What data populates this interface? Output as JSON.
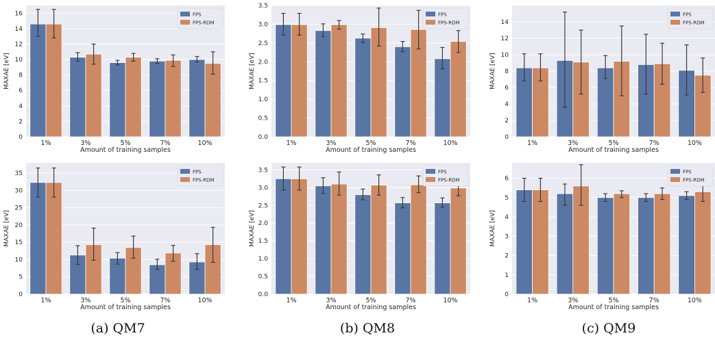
{
  "colors": {
    "fps": "#5875a4",
    "fps_rdm": "#cc8963",
    "plot_bg": "#eaeaf2",
    "grid": "#ffffff",
    "err": "#3a3a3a"
  },
  "captions": [
    "(a) QM7",
    "(b) QM8",
    "(c) QM9"
  ],
  "chart_data": [
    {
      "type": "bar",
      "panel": "QM7-top",
      "categories": [
        "1%",
        "3%",
        "5%",
        "7%",
        "10%"
      ],
      "series": [
        {
          "name": "FPS",
          "values": [
            14.6,
            10.3,
            9.6,
            9.8,
            10.0
          ],
          "err_low": [
            13.0,
            9.8,
            9.3,
            9.5,
            9.7
          ],
          "err_high": [
            16.5,
            10.9,
            9.9,
            10.1,
            10.4
          ]
        },
        {
          "name": "FPS-RDM",
          "values": [
            14.6,
            10.7,
            10.3,
            9.9,
            9.5
          ],
          "err_low": [
            12.8,
            9.4,
            9.8,
            9.1,
            8.1
          ],
          "err_high": [
            16.5,
            12.0,
            10.8,
            10.6,
            11.0
          ]
        }
      ],
      "xlabel": "Amount of training samples",
      "ylabel": "MAXAE [eV]",
      "ylim": [
        0,
        17
      ],
      "yticks": [
        0,
        2,
        4,
        6,
        8,
        10,
        12,
        14,
        16
      ],
      "yticklabels": [
        "0",
        "2",
        "4",
        "6",
        "8",
        "10",
        "12",
        "14",
        "16"
      ]
    },
    {
      "type": "bar",
      "panel": "QM8-top",
      "categories": [
        "1%",
        "3%",
        "5%",
        "7%",
        "10%"
      ],
      "series": [
        {
          "name": "FPS",
          "values": [
            2.99,
            2.83,
            2.63,
            2.4,
            2.08
          ],
          "err_low": [
            2.71,
            2.67,
            2.51,
            2.27,
            1.81
          ],
          "err_high": [
            3.29,
            3.01,
            2.74,
            2.54,
            2.38
          ]
        },
        {
          "name": "FPS-RDM",
          "values": [
            2.99,
            2.99,
            2.91,
            2.86,
            2.54
          ],
          "err_low": [
            2.71,
            2.87,
            2.42,
            2.34,
            2.25
          ],
          "err_high": [
            3.29,
            3.1,
            3.43,
            3.37,
            2.83
          ]
        }
      ],
      "xlabel": "Amount of training samples",
      "ylabel": "MAXAE [eV]",
      "ylim": [
        0,
        3.5
      ],
      "yticks": [
        0,
        0.5,
        1,
        1.5,
        2,
        2.5,
        3,
        3.5
      ],
      "yticklabels": [
        "0.0",
        "0.5",
        "1.0",
        "1.5",
        "2.0",
        "2.5",
        "3.0",
        "3.5"
      ]
    },
    {
      "type": "bar",
      "panel": "QM9-top",
      "categories": [
        "1%",
        "3%",
        "5%",
        "7%",
        "10%"
      ],
      "series": [
        {
          "name": "FPS",
          "values": [
            8.4,
            9.3,
            8.4,
            8.8,
            8.1
          ],
          "err_low": [
            6.8,
            3.6,
            7.1,
            5.2,
            5.1
          ],
          "err_high": [
            10.1,
            15.2,
            9.9,
            12.5,
            11.2
          ]
        },
        {
          "name": "FPS-RDM",
          "values": [
            8.4,
            9.1,
            9.2,
            8.9,
            7.5
          ],
          "err_low": [
            6.8,
            5.2,
            5.0,
            6.4,
            5.4
          ],
          "err_high": [
            10.1,
            13.0,
            13.5,
            11.4,
            9.6
          ]
        }
      ],
      "xlabel": "Amount of training samples",
      "ylabel": "MAXAE [eV]",
      "ylim": [
        0,
        16
      ],
      "yticks": [
        0,
        2,
        4,
        6,
        8,
        10,
        12,
        14
      ],
      "yticklabels": [
        "0",
        "2",
        "4",
        "6",
        "8",
        "10",
        "12",
        "14"
      ]
    },
    {
      "type": "bar",
      "panel": "QM7-bottom",
      "categories": [
        "1%",
        "3%",
        "5%",
        "7%",
        "10%"
      ],
      "series": [
        {
          "name": "FPS",
          "values": [
            32.3,
            11.3,
            10.4,
            8.5,
            9.3
          ],
          "err_low": [
            28.1,
            8.6,
            8.7,
            7.2,
            7.2
          ],
          "err_high": [
            36.5,
            14.0,
            12.0,
            10.1,
            11.7
          ]
        },
        {
          "name": "FPS-RDM",
          "values": [
            32.3,
            14.3,
            13.5,
            11.9,
            14.3
          ],
          "err_low": [
            28.1,
            9.8,
            10.4,
            9.5,
            9.2
          ],
          "err_high": [
            36.5,
            19.1,
            16.8,
            14.1,
            19.3
          ]
        }
      ],
      "xlabel": "Amount of training samples",
      "ylabel": "MAXAE [eV]",
      "ylim": [
        0,
        38
      ],
      "yticks": [
        0,
        5,
        10,
        15,
        20,
        25,
        30,
        35
      ],
      "yticklabels": [
        "0",
        "5",
        "10",
        "15",
        "20",
        "25",
        "30",
        "35"
      ]
    },
    {
      "type": "bar",
      "panel": "QM8-bottom",
      "categories": [
        "1%",
        "3%",
        "5%",
        "7%",
        "10%"
      ],
      "series": [
        {
          "name": "FPS",
          "values": [
            3.25,
            3.05,
            2.8,
            2.57,
            2.57
          ],
          "err_low": [
            2.93,
            2.84,
            2.66,
            2.43,
            2.45
          ],
          "err_high": [
            3.58,
            3.28,
            2.96,
            2.72,
            2.71
          ]
        },
        {
          "name": "FPS-RDM",
          "values": [
            3.25,
            3.1,
            3.07,
            3.08,
            2.99
          ],
          "err_low": [
            2.93,
            2.79,
            2.79,
            2.86,
            2.77
          ],
          "err_high": [
            3.58,
            3.44,
            3.36,
            3.33,
            3.24
          ]
        }
      ],
      "xlabel": "Amount of training samples",
      "ylabel": "MAXAE [eV]",
      "ylim": [
        0,
        3.7
      ],
      "yticks": [
        0,
        0.5,
        1,
        1.5,
        2,
        2.5,
        3,
        3.5
      ],
      "yticklabels": [
        "0.0",
        "0.5",
        "1.0",
        "1.5",
        "2.0",
        "2.5",
        "3.0",
        "3.5"
      ]
    },
    {
      "type": "bar",
      "panel": "QM9-bottom",
      "categories": [
        "1%",
        "3%",
        "5%",
        "7%",
        "10%"
      ],
      "series": [
        {
          "name": "FPS",
          "values": [
            5.4,
            5.2,
            5.0,
            5.0,
            5.1
          ],
          "err_low": [
            4.8,
            4.6,
            4.8,
            4.8,
            4.9
          ],
          "err_high": [
            6.0,
            5.7,
            5.2,
            5.2,
            5.3
          ]
        },
        {
          "name": "FPS-RDM",
          "values": [
            5.4,
            5.6,
            5.2,
            5.2,
            5.3
          ],
          "err_low": [
            4.8,
            4.6,
            5.0,
            4.9,
            4.8
          ],
          "err_high": [
            6.0,
            6.7,
            5.35,
            5.5,
            5.9
          ]
        }
      ],
      "xlabel": "Amount of training samples",
      "ylabel": "MAXAE [eV]",
      "ylim": [
        0,
        6.8
      ],
      "yticks": [
        0,
        1,
        2,
        3,
        4,
        5,
        6
      ],
      "yticklabels": [
        "0",
        "1",
        "2",
        "3",
        "4",
        "5",
        "6"
      ]
    }
  ]
}
